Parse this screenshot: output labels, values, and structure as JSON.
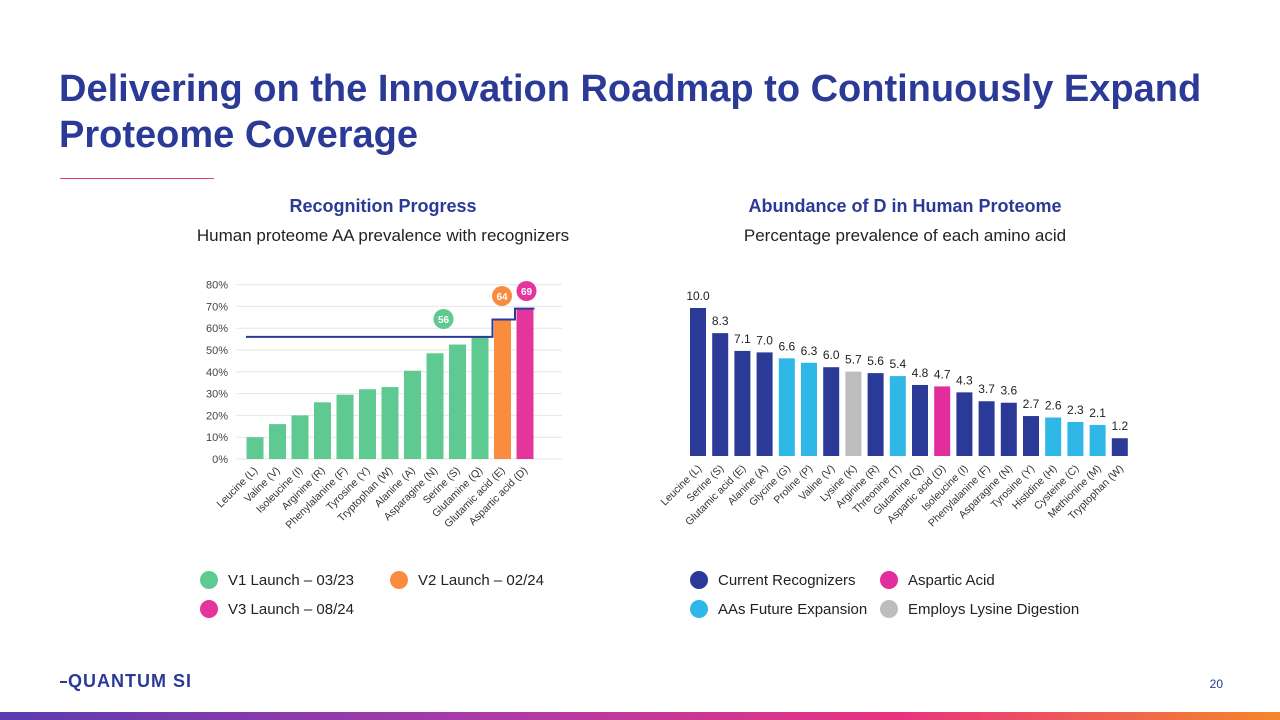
{
  "slide": {
    "title": "Delivering on the Innovation Roadmap to Continuously Expand Proteome Coverage",
    "page_number": "20",
    "logo_text": "QUANTUM SI"
  },
  "colors": {
    "title": "#2b3a97",
    "v1": "#5fc992",
    "v2": "#f98c3e",
    "v3": "#e3359b",
    "current": "#2b3a97",
    "future": "#2fb7e8",
    "aspartic": "#e42d9d",
    "lysine": "#bdbdbd",
    "accent_rule": "#e8377a"
  },
  "left_chart": {
    "heading": "Recognition Progress",
    "subheading": "Human proteome AA prevalence with recognizers"
  },
  "right_chart": {
    "heading": "Abundance of D in Human Proteome",
    "subheading": "Percentage prevalence of each amino acid"
  },
  "legend_left": [
    {
      "label": "V1 Launch – 03/23",
      "color": "#5fc992"
    },
    {
      "label": "V2 Launch – 02/24",
      "color": "#f98c3e"
    },
    {
      "label": "V3 Launch – 08/24",
      "color": "#e3359b"
    }
  ],
  "legend_right": [
    {
      "label": "Current Recognizers",
      "color": "#2b3a97"
    },
    {
      "label": "Aspartic Acid",
      "color": "#e42d9d"
    },
    {
      "label": "AAs Future Expansion",
      "color": "#2fb7e8"
    },
    {
      "label": "Employs Lysine Digestion",
      "color": "#bdbdbd"
    }
  ],
  "chart_data": [
    {
      "type": "bar",
      "title": "Recognition Progress",
      "subtitle": "Human proteome AA prevalence with recognizers",
      "categories": [
        "Leucine (L)",
        "Valine (V)",
        "Isoleucine (I)",
        "Arginine (R)",
        "Phenylalanine (F)",
        "Tyrosine (Y)",
        "Tryptophan (W)",
        "Alanine (A)",
        "Asparagine (N)",
        "Serine (S)",
        "Glutamine (Q)",
        "Glutamic acid (E)",
        "Aspartic acid (D)"
      ],
      "values": [
        10,
        16,
        20,
        26,
        29.5,
        32,
        33,
        40.5,
        48.5,
        52.5,
        56,
        64,
        69
      ],
      "bar_groups": [
        "v1",
        "v1",
        "v1",
        "v1",
        "v1",
        "v1",
        "v1",
        "v1",
        "v1",
        "v1",
        "v1",
        "v2",
        "v3"
      ],
      "ylim": [
        0,
        80
      ],
      "yticks": [
        "0%",
        "10%",
        "20%",
        "30%",
        "40%",
        "50%",
        "60%",
        "70%",
        "80%"
      ],
      "yticks_values": [
        0,
        10,
        20,
        30,
        40,
        50,
        60,
        70,
        80
      ],
      "step_line": [
        {
          "from_category": 0,
          "to_category": 10,
          "value": 56
        },
        {
          "from_category": 11,
          "to_category": 11,
          "value": 64
        },
        {
          "from_category": 12,
          "to_category": 12,
          "value": 69
        }
      ],
      "markers": [
        {
          "label": "56",
          "value": 56,
          "category_index": 9,
          "group": "v1"
        },
        {
          "label": "64",
          "value": 64,
          "category_index": 11,
          "group": "v2"
        },
        {
          "label": "69",
          "value": 69,
          "category_index": 12,
          "group": "v3"
        }
      ],
      "grid": true,
      "legend": "bottom"
    },
    {
      "type": "bar",
      "title": "Abundance of D in Human Proteome",
      "subtitle": "Percentage prevalence of each amino acid",
      "categories": [
        "Leucine (L)",
        "Serine (S)",
        "Glutamic acid (E)",
        "Alanine (A)",
        "Glycine (G)",
        "Proline (P)",
        "Valine (V)",
        "Lysine (K)",
        "Arginine (R)",
        "Threonine (T)",
        "Glutamine (Q)",
        "Aspartic acid (D)",
        "Isoleucine (I)",
        "Phenylalanine (F)",
        "Asparagine (N)",
        "Tyrosine (Y)",
        "Histidine (H)",
        "Cysteine (C)",
        "Methionine (M)",
        "Tryptophan (W)"
      ],
      "values": [
        10.0,
        8.3,
        7.1,
        7.0,
        6.6,
        6.3,
        6.0,
        5.7,
        5.6,
        5.4,
        4.8,
        4.7,
        4.3,
        3.7,
        3.6,
        2.7,
        2.6,
        2.3,
        2.1,
        1.2
      ],
      "value_labels": [
        "10.0",
        "8.3",
        "7.1",
        "7.0",
        "6.6",
        "6.3",
        "6.0",
        "5.7",
        "5.6",
        "5.4",
        "4.8",
        "4.7",
        "4.3",
        "3.7",
        "3.6",
        "2.7",
        "2.6",
        "2.3",
        "2.1",
        "1.2"
      ],
      "bar_groups": [
        "current",
        "current",
        "current",
        "current",
        "future",
        "future",
        "current",
        "lysine",
        "current",
        "future",
        "current",
        "aspartic",
        "current",
        "current",
        "current",
        "current",
        "future",
        "future",
        "future",
        "current"
      ],
      "ylim": [
        0,
        10.5
      ],
      "grid": false,
      "legend": "bottom"
    }
  ]
}
